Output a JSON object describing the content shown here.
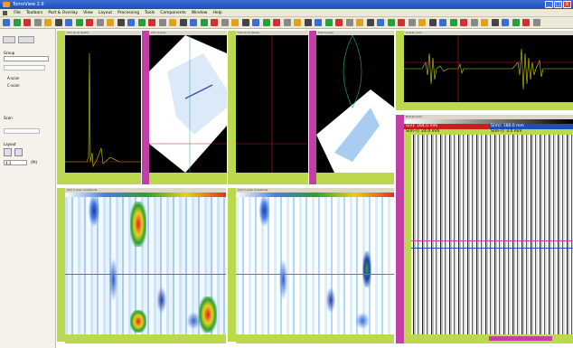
{
  "window": {
    "title": "TomoView 2.9",
    "min": "_",
    "max": "□",
    "close": "x"
  },
  "menu": [
    "File",
    "Toolbars",
    "Part & Overlay",
    "View",
    "Layout",
    "Processing",
    "Tools",
    "Components",
    "Window",
    "Help"
  ],
  "left": {
    "group": "Group",
    "scan": "Scan",
    "cursor_a": "A-scan",
    "cursor_c": "C-scan",
    "layout": "Layout",
    "ratio": "4:3",
    "value_label": "(Pt)"
  },
  "ascan": {
    "cursor1": "S(n): 164.0 mm",
    "cursor2": "S(m): 188.0 mm",
    "delta1": "S(m-r): 24.0 mm",
    "delta2": "S(m-r): 3.0 mm"
  },
  "panels": {
    "p1": "Ch1 [1:1] Sector",
    "p2": "Ch1 S-scan",
    "p3": "Ch2 [1:1] Sector",
    "p4": "Ch2 S-scan",
    "p5": "Ch1 C-scan Amplitude",
    "p6": "Ch2 C-scan Amplitude",
    "p7": "A-Scan (Ch)",
    "p8": "B-Scan (Ch)"
  },
  "colors": {
    "accent": "#bcd84e",
    "magenta": "#c23fa8",
    "red": "#c81e1e"
  }
}
